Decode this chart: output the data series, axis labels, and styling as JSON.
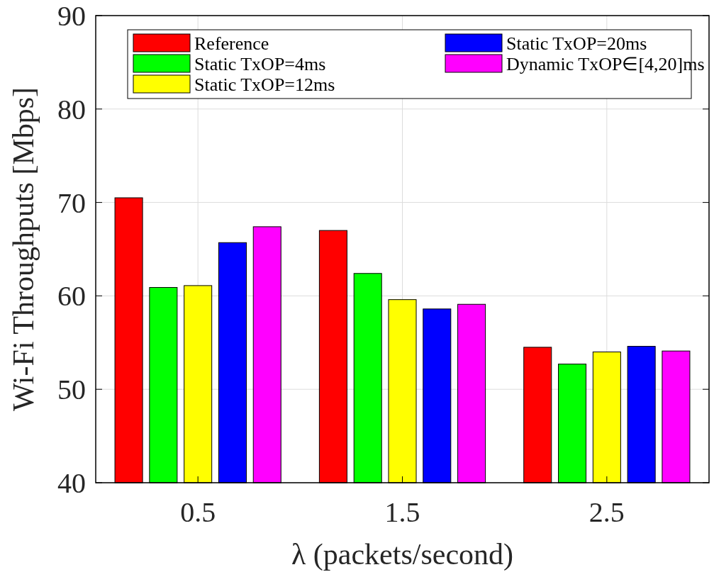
{
  "chart_data": {
    "type": "bar",
    "xlabel": "λ (packets/second)",
    "ylabel": "Wi-Fi Throughputs [Mbps]",
    "categories": [
      "0.5",
      "1.5",
      "2.5"
    ],
    "series": [
      {
        "name": "Reference",
        "color": "#ff0000",
        "values": [
          70.5,
          67.0,
          54.5
        ]
      },
      {
        "name": "Static TxOP=4ms",
        "color": "#00ff00",
        "values": [
          60.9,
          62.4,
          52.7
        ]
      },
      {
        "name": "Static TxOP=12ms",
        "color": "#ffff00",
        "values": [
          61.1,
          59.6,
          54.0
        ]
      },
      {
        "name": "Static TxOP=20ms",
        "color": "#0000ff",
        "values": [
          65.7,
          58.6,
          54.6
        ]
      },
      {
        "name": "Dynamic TxOP∈[4,20]ms",
        "color": "#ff00ff",
        "values": [
          67.4,
          59.1,
          54.1
        ]
      }
    ],
    "ylim": [
      40,
      90
    ],
    "yticks": [
      40,
      50,
      60,
      70,
      80,
      90
    ],
    "grid": true,
    "legend": "top"
  }
}
